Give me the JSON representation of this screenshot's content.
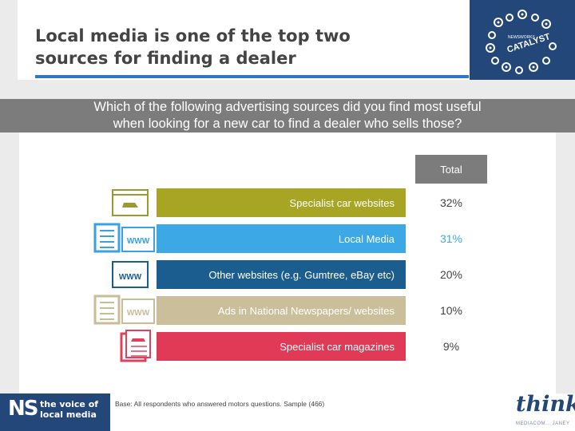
{
  "header": {
    "title_line1": "Local media is one of the top two",
    "title_line2": "sources for finding a dealer",
    "logo_text": "CATALYST",
    "logo_small": "NEWSWORKS"
  },
  "question": {
    "line1": "Which of the following advertising sources did you find most useful",
    "line2": "when looking for a new car to find a dealer who sells those?"
  },
  "footer": {
    "base_note": "Base: All respondents who answered motors questions. Sample (466)",
    "ns_big": "NS",
    "ns_line1": "the voice of",
    "ns_line2": "local media",
    "think_word": "think",
    "think_sub": "MEDIACOM… JANEY"
  },
  "colors": {
    "header_blue": "#24477a",
    "accent_line": "#2f78c8",
    "question_gray": "#7c7c7c"
  },
  "icons": [
    {
      "name": "car-browser-icon",
      "color": "#9b9a2f"
    },
    {
      "name": "newspaper-www-icon",
      "color": "#3aa2e2"
    },
    {
      "name": "www-browser-icon",
      "color": "#1c5d90"
    },
    {
      "name": "newspaper-www-icon",
      "color": "#c9bd97"
    },
    {
      "name": "car-magazine-icon",
      "color": "#e0405a"
    }
  ],
  "chart_data": {
    "type": "bar",
    "column_header": "Total",
    "categories": [
      "Specialist car websites",
      "Local Media",
      "Other websites (e.g. Gumtree, eBay etc)",
      "Ads in National Newspapers/ websites",
      "Specialist car magazines"
    ],
    "series": [
      {
        "values": [
          32,
          31,
          20,
          10,
          9
        ]
      }
    ],
    "value_labels": [
      "32%",
      "31%",
      "20%",
      "10%",
      "9%"
    ],
    "colors": [
      "#a8a525",
      "#3ca8e6",
      "#1c5d90",
      "#cabf9a",
      "#e03a56"
    ],
    "label_colors": [
      "#ffffff",
      "#ffffff",
      "#ffffff",
      "#ffffff",
      "#ffffff"
    ],
    "value_colors": [
      "#444444",
      "#3ca8e6",
      "#444444",
      "#444444",
      "#444444"
    ]
  }
}
